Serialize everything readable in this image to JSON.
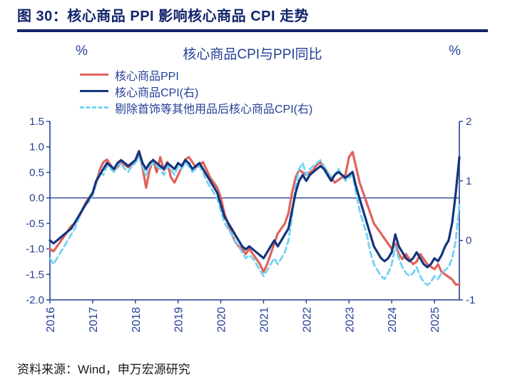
{
  "header": {
    "title": "图 30：核心商品 PPI 影响核心商品 CPI 走势"
  },
  "chart": {
    "title": "核心商品CPI与PPI同比",
    "left_unit": "%",
    "right_unit": "%"
  },
  "footer": {
    "source": "资料来源：Wind，申万宏源研究"
  },
  "colors": {
    "header_navy": "#13246b",
    "axis_text": "#243f94",
    "ppi_red": "#e0625c",
    "cpi_dark_blue": "#14357d",
    "cpi_light_blue": "#73d2f4"
  },
  "chart_data": {
    "type": "line",
    "title": "核心商品CPI与PPI同比",
    "x_start": "2016-01",
    "x_freq": "monthly",
    "x_tick_labels": [
      "2016",
      "2017",
      "2018",
      "2019",
      "2020",
      "2021",
      "2022",
      "2023",
      "2024",
      "2025"
    ],
    "left_axis": {
      "unit": "%",
      "min": -2.0,
      "max": 1.5,
      "ticks": [
        "1.5",
        "1.0",
        "0.5",
        "0.0",
        "-0.5",
        "-1.0",
        "-1.5",
        "-2.0"
      ]
    },
    "right_axis": {
      "unit": "%",
      "min": -1,
      "max": 2,
      "ticks": [
        "2",
        "1",
        "0",
        "-1"
      ]
    },
    "zero_line": true,
    "legend_position": "top-left",
    "grid": false,
    "series": [
      {
        "name": "核心商品PPI",
        "axis": "left",
        "color": "#e0625c",
        "dashed": false,
        "values": [
          -1.0,
          -1.05,
          -0.95,
          -0.85,
          -0.75,
          -0.65,
          -0.55,
          -0.5,
          -0.4,
          -0.25,
          -0.1,
          0.0,
          0.1,
          0.3,
          0.55,
          0.7,
          0.75,
          0.65,
          0.55,
          0.6,
          0.7,
          0.65,
          0.6,
          0.65,
          0.7,
          0.9,
          0.6,
          0.2,
          0.55,
          0.75,
          0.5,
          0.8,
          0.55,
          0.7,
          0.4,
          0.3,
          0.45,
          0.6,
          0.75,
          0.8,
          0.7,
          0.6,
          0.65,
          0.7,
          0.55,
          0.4,
          0.3,
          0.2,
          0.0,
          -0.3,
          -0.5,
          -0.7,
          -0.85,
          -0.95,
          -1.0,
          -1.1,
          -1.0,
          -1.1,
          -1.2,
          -1.3,
          -1.45,
          -1.3,
          -1.1,
          -0.9,
          -0.7,
          -0.6,
          -0.5,
          -0.3,
          0.1,
          0.4,
          0.55,
          0.5,
          0.45,
          0.5,
          0.55,
          0.65,
          0.7,
          0.6,
          0.5,
          0.4,
          0.3,
          0.35,
          0.4,
          0.45,
          0.8,
          0.9,
          0.6,
          0.3,
          0.1,
          -0.1,
          -0.3,
          -0.5,
          -0.6,
          -0.7,
          -0.8,
          -0.9,
          -1.0,
          -0.9,
          -1.1,
          -1.2,
          -1.1,
          -1.2,
          -1.3,
          -1.25,
          -1.1,
          -1.2,
          -1.3,
          -1.35,
          -1.4,
          -1.3,
          -1.45,
          -1.5,
          -1.55,
          -1.6,
          -1.7,
          -1.7
        ]
      },
      {
        "name": "核心商品CPI(右)",
        "axis": "right",
        "color": "#14357d",
        "dashed": false,
        "values": [
          0.0,
          -0.05,
          0.0,
          0.05,
          0.1,
          0.15,
          0.2,
          0.3,
          0.4,
          0.5,
          0.6,
          0.7,
          0.8,
          1.0,
          1.1,
          1.2,
          1.3,
          1.25,
          1.2,
          1.3,
          1.35,
          1.3,
          1.25,
          1.3,
          1.35,
          1.5,
          1.3,
          1.2,
          1.3,
          1.35,
          1.3,
          1.25,
          1.2,
          1.3,
          1.25,
          1.2,
          1.3,
          1.25,
          1.35,
          1.3,
          1.2,
          1.25,
          1.3,
          1.2,
          1.1,
          1.0,
          0.9,
          0.8,
          0.6,
          0.4,
          0.3,
          0.2,
          0.1,
          0.0,
          -0.1,
          -0.15,
          -0.1,
          -0.15,
          -0.2,
          -0.25,
          -0.3,
          -0.2,
          -0.1,
          0.0,
          -0.1,
          0.0,
          0.1,
          0.2,
          0.5,
          0.8,
          1.0,
          1.1,
          1.0,
          1.1,
          1.15,
          1.2,
          1.25,
          1.2,
          1.1,
          1.0,
          1.1,
          1.15,
          1.1,
          1.05,
          1.1,
          1.15,
          0.9,
          0.7,
          0.5,
          0.3,
          0.1,
          -0.1,
          -0.2,
          -0.3,
          -0.35,
          -0.3,
          -0.2,
          0.1,
          -0.1,
          -0.2,
          -0.3,
          -0.35,
          -0.3,
          -0.2,
          -0.3,
          -0.4,
          -0.45,
          -0.4,
          -0.3,
          -0.35,
          -0.25,
          -0.1,
          0.0,
          0.3,
          0.8,
          1.4
        ]
      },
      {
        "name": "剔除首饰等其他用品后核心商品CPI(右)",
        "axis": "right",
        "color": "#73d2f4",
        "dashed": true,
        "values": [
          -0.3,
          -0.4,
          -0.3,
          -0.2,
          -0.1,
          0.0,
          0.1,
          0.2,
          0.35,
          0.5,
          0.6,
          0.65,
          0.75,
          0.95,
          1.15,
          1.1,
          1.25,
          1.2,
          1.15,
          1.25,
          1.3,
          1.2,
          1.15,
          1.25,
          1.3,
          1.4,
          1.25,
          1.1,
          1.25,
          1.3,
          1.25,
          1.2,
          1.1,
          1.25,
          1.2,
          1.1,
          1.25,
          1.2,
          1.3,
          1.25,
          1.15,
          1.2,
          1.25,
          1.15,
          1.0,
          0.9,
          0.8,
          0.7,
          0.5,
          0.3,
          0.2,
          0.1,
          0.0,
          -0.1,
          -0.2,
          -0.3,
          -0.25,
          -0.3,
          -0.4,
          -0.5,
          -0.6,
          -0.5,
          -0.4,
          -0.3,
          -0.4,
          -0.3,
          -0.2,
          0.0,
          0.4,
          0.9,
          1.2,
          1.3,
          1.1,
          1.2,
          1.25,
          1.3,
          1.35,
          1.25,
          1.15,
          1.05,
          1.1,
          1.2,
          1.1,
          1.0,
          1.05,
          1.1,
          0.8,
          0.5,
          0.3,
          0.1,
          -0.2,
          -0.4,
          -0.5,
          -0.6,
          -0.65,
          -0.55,
          -0.4,
          -0.1,
          -0.3,
          -0.45,
          -0.55,
          -0.6,
          -0.55,
          -0.45,
          -0.6,
          -0.7,
          -0.75,
          -0.7,
          -0.6,
          -0.65,
          -0.55,
          -0.5,
          -0.45,
          -0.3,
          0.0,
          0.6
        ]
      }
    ]
  }
}
